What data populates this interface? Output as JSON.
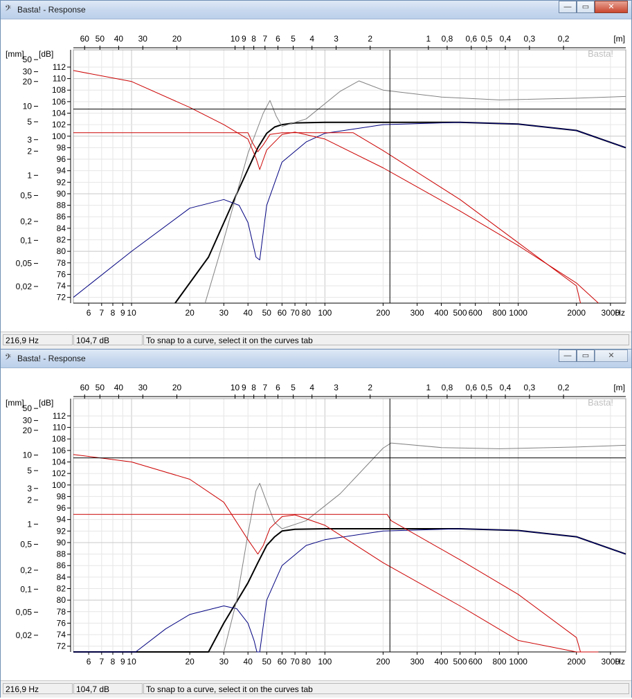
{
  "windows": [
    {
      "title": "Basta! - Response",
      "watermark": "Basta!",
      "controls": {
        "minimize": "—",
        "maximize": "▭",
        "close": "✕"
      },
      "status": {
        "frequency": "216,9 Hz",
        "level": "104,7 dB",
        "hint": "To snap to a curve, select it on the curves tab"
      },
      "close_active": true
    },
    {
      "title": "Basta! - Response",
      "watermark": "Basta!",
      "controls": {
        "minimize": "—",
        "maximize": "▭",
        "close": "✕"
      },
      "status": {
        "frequency": "216,9 Hz",
        "level": "104,7 dB",
        "hint": "To snap to a curve, select it on the curves tab"
      },
      "close_active": false
    }
  ],
  "axes": {
    "x_unit": "Hz",
    "x_range": [
      5,
      3600
    ],
    "x_ticks": [
      {
        "v": 6,
        "t": "6"
      },
      {
        "v": 7,
        "t": "7"
      },
      {
        "v": 8,
        "t": "8"
      },
      {
        "v": 9,
        "t": "9"
      },
      {
        "v": 10,
        "t": "10"
      },
      {
        "v": 20,
        "t": "20"
      },
      {
        "v": 30,
        "t": "30"
      },
      {
        "v": 40,
        "t": "40"
      },
      {
        "v": 50,
        "t": "50"
      },
      {
        "v": 60,
        "t": "60"
      },
      {
        "v": 70,
        "t": "70"
      },
      {
        "v": 80,
        "t": "80"
      },
      {
        "v": 100,
        "t": "100"
      },
      {
        "v": 200,
        "t": "200"
      },
      {
        "v": 300,
        "t": "300"
      },
      {
        "v": 400,
        "t": "400"
      },
      {
        "v": 500,
        "t": "500"
      },
      {
        "v": 600,
        "t": "600"
      },
      {
        "v": 800,
        "t": "800"
      },
      {
        "v": 1000,
        "t": "1000"
      },
      {
        "v": 2000,
        "t": "2000"
      },
      {
        "v": 3000,
        "t": "3000"
      }
    ],
    "wavelength_unit": "[m]",
    "wavelength_ticks": [
      {
        "m": 60,
        "t": "60"
      },
      {
        "m": 50,
        "t": "50"
      },
      {
        "m": 40,
        "t": "40"
      },
      {
        "m": 30,
        "t": "30"
      },
      {
        "m": 20,
        "t": "20"
      },
      {
        "m": 10,
        "t": "10"
      },
      {
        "m": 9,
        "t": "9"
      },
      {
        "m": 8,
        "t": "8"
      },
      {
        "m": 7,
        "t": "7"
      },
      {
        "m": 6,
        "t": "6"
      },
      {
        "m": 5,
        "t": "5"
      },
      {
        "m": 4,
        "t": "4"
      },
      {
        "m": 3,
        "t": "3"
      },
      {
        "m": 2,
        "t": "2"
      },
      {
        "m": 1,
        "t": "1"
      },
      {
        "m": 0.8,
        "t": "0,8"
      },
      {
        "m": 0.6,
        "t": "0,6"
      },
      {
        "m": 0.5,
        "t": "0,5"
      },
      {
        "m": 0.4,
        "t": "0,4"
      },
      {
        "m": 0.3,
        "t": "0,3"
      },
      {
        "m": 0.2,
        "t": "0,2"
      }
    ],
    "db_unit": "[dB]",
    "db_range": [
      71,
      115
    ],
    "db_ticks": [
      72,
      74,
      76,
      78,
      80,
      82,
      84,
      86,
      88,
      90,
      92,
      94,
      96,
      98,
      100,
      102,
      104,
      106,
      108,
      110,
      112
    ],
    "mm_unit": "[mm]",
    "mm_ticks": [
      {
        "db": 113.3,
        "t": "50"
      },
      {
        "db": 111.2,
        "t": "30"
      },
      {
        "db": 109.5,
        "t": "20"
      },
      {
        "db": 105.2,
        "t": "10"
      },
      {
        "db": 102.5,
        "t": "5"
      },
      {
        "db": 99.4,
        "t": "3"
      },
      {
        "db": 97.4,
        "t": "2"
      },
      {
        "db": 93.2,
        "t": "1"
      },
      {
        "db": 89.7,
        "t": "0,5"
      },
      {
        "db": 85.2,
        "t": "0,2"
      },
      {
        "db": 81.9,
        "t": "0,1"
      },
      {
        "db": 77.9,
        "t": "0,05"
      },
      {
        "db": 73.9,
        "t": "0,02"
      }
    ]
  },
  "cursor": {
    "frequency": 216.9,
    "level": 104.7
  },
  "chart_data": [
    {
      "type": "line",
      "x_scale": "log",
      "xlim": [
        5,
        3600
      ],
      "ylim": [
        71,
        115
      ],
      "grid": true,
      "series": [
        {
          "color": "#000000",
          "x": [
            16.8,
            25,
            35,
            45,
            50,
            55,
            60,
            70,
            100,
            200,
            500,
            1000,
            2000,
            3600
          ],
          "y": [
            71,
            79,
            90,
            98,
            100.5,
            101.6,
            102,
            102.3,
            102.4,
            102.4,
            102.4,
            102.1,
            101,
            98
          ]
        },
        {
          "color": "#000080",
          "x": [
            5,
            10,
            20,
            30,
            36,
            40,
            44,
            46,
            50,
            60,
            80,
            100,
            200,
            500,
            1000,
            2000,
            3600
          ],
          "y": [
            72,
            80,
            87.5,
            89,
            88,
            85,
            79,
            78.5,
            88,
            95.5,
            99,
            100.5,
            102,
            102.4,
            102.1,
            101,
            98
          ]
        },
        {
          "color": "#808080",
          "x": [
            24,
            30,
            40,
            48,
            52,
            56,
            60,
            80,
            120,
            150,
            200,
            400,
            800,
            2000,
            3600
          ],
          "y": [
            71,
            82,
            97,
            104,
            106.2,
            103.5,
            101.7,
            103,
            107.8,
            109.6,
            108,
            106.8,
            106.3,
            106.6,
            106.9
          ]
        },
        {
          "color": "#cc0000",
          "x": [
            5,
            10,
            20,
            30,
            40,
            44,
            46,
            50,
            60,
            70,
            100,
            200,
            500,
            1000,
            2000,
            2600
          ],
          "y": [
            111.4,
            109.5,
            105,
            102,
            99.5,
            96.2,
            94.2,
            97.6,
            100.3,
            100.7,
            99.5,
            94.5,
            87,
            81,
            74.5,
            71
          ]
        },
        {
          "color": "#cc0000",
          "x": [
            5,
            40,
            42,
            45,
            48,
            52,
            60,
            80,
            140,
            200,
            500,
            1000,
            2000,
            2100
          ],
          "y": [
            100.6,
            100.6,
            99,
            97.3,
            98.5,
            100.3,
            100.6,
            100.6,
            100.6,
            97.5,
            89,
            81.5,
            74,
            71
          ]
        }
      ]
    },
    {
      "type": "line",
      "x_scale": "log",
      "xlim": [
        5,
        3600
      ],
      "ylim": [
        71,
        115
      ],
      "grid": true,
      "series": [
        {
          "color": "#000000",
          "x": [
            5,
            25,
            30,
            40,
            45,
            50,
            55,
            60,
            70,
            100,
            200,
            500,
            1000,
            2000,
            3600
          ],
          "y": [
            71,
            71,
            76,
            83,
            86.5,
            89.5,
            91,
            92,
            92.3,
            92.4,
            92.4,
            92.4,
            92.1,
            91,
            88
          ]
        },
        {
          "color": "#000080",
          "x": [
            5,
            10.5,
            15,
            20,
            30,
            35,
            40,
            43,
            44.5,
            46,
            50,
            60,
            80,
            100,
            200,
            500,
            1000,
            2000,
            3600
          ],
          "y": [
            71,
            71,
            75,
            77.5,
            79,
            78.5,
            76,
            73,
            71,
            71,
            80,
            86,
            89.5,
            90.5,
            92,
            92.4,
            92.1,
            91,
            88
          ]
        },
        {
          "color": "#808080",
          "x": [
            30,
            35,
            40,
            44,
            46,
            50,
            55,
            60,
            80,
            120,
            200,
            220,
            400,
            800,
            2000,
            3600
          ],
          "y": [
            71,
            80,
            91.5,
            99,
            100.3,
            97,
            93.5,
            92.4,
            93.8,
            98.5,
            106.4,
            107.3,
            106.5,
            106.3,
            106.6,
            106.9
          ]
        },
        {
          "color": "#cc0000",
          "x": [
            5,
            10,
            20,
            30,
            40,
            45,
            48,
            52,
            60,
            70,
            100,
            200,
            500,
            1000,
            2000,
            2600
          ],
          "y": [
            105.3,
            104,
            101,
            97,
            90.5,
            88,
            89.5,
            92.5,
            94.5,
            94.8,
            93,
            86.5,
            79,
            73,
            71,
            71
          ]
        },
        {
          "color": "#cc0000",
          "x": [
            5,
            210,
            220,
            500,
            1000,
            2000,
            2100
          ],
          "y": [
            94.9,
            94.9,
            93.8,
            87,
            81,
            73.5,
            71
          ]
        }
      ]
    }
  ]
}
